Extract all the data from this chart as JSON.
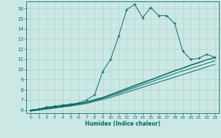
{
  "xlabel": "Humidex (Indice chaleur)",
  "bg_color": "#cce8e4",
  "grid_color": "#aad4cc",
  "line_color": "#006666",
  "xlim": [
    -0.5,
    23.5
  ],
  "ylim": [
    5.7,
    16.7
  ],
  "yticks": [
    6,
    7,
    8,
    9,
    10,
    11,
    12,
    13,
    14,
    15,
    16
  ],
  "xticks": [
    0,
    1,
    2,
    3,
    4,
    5,
    6,
    7,
    8,
    9,
    10,
    11,
    12,
    13,
    14,
    15,
    16,
    17,
    18,
    19,
    20,
    21,
    22,
    23
  ],
  "curves": [
    {
      "x": [
        0,
        1,
        2,
        3,
        4,
        5,
        6,
        7,
        8,
        9,
        10,
        11,
        12,
        13,
        14,
        15,
        16,
        17,
        18,
        19,
        20,
        21,
        22,
        23
      ],
      "y": [
        6.0,
        6.1,
        6.3,
        6.4,
        6.5,
        6.6,
        6.7,
        7.0,
        7.5,
        9.8,
        11.0,
        13.3,
        15.9,
        16.4,
        15.1,
        16.1,
        15.3,
        15.3,
        14.5,
        11.8,
        11.0,
        11.1,
        11.5,
        11.2
      ],
      "marker": "+"
    },
    {
      "x": [
        0,
        1,
        2,
        3,
        4,
        5,
        6,
        7,
        8,
        9,
        10,
        11,
        12,
        13,
        14,
        15,
        16,
        17,
        18,
        19,
        20,
        21,
        22,
        23
      ],
      "y": [
        6.0,
        6.1,
        6.2,
        6.3,
        6.4,
        6.5,
        6.65,
        6.8,
        7.0,
        7.2,
        7.5,
        7.75,
        8.05,
        8.35,
        8.65,
        8.95,
        9.25,
        9.55,
        9.85,
        10.1,
        10.4,
        10.65,
        10.95,
        11.2
      ],
      "marker": null
    },
    {
      "x": [
        0,
        1,
        2,
        3,
        4,
        5,
        6,
        7,
        8,
        9,
        10,
        11,
        12,
        13,
        14,
        15,
        16,
        17,
        18,
        19,
        20,
        21,
        22,
        23
      ],
      "y": [
        6.0,
        6.1,
        6.2,
        6.3,
        6.4,
        6.5,
        6.65,
        6.8,
        7.05,
        7.25,
        7.55,
        7.85,
        8.15,
        8.45,
        8.75,
        9.0,
        9.3,
        9.6,
        9.9,
        10.15,
        10.45,
        10.7,
        10.95,
        11.15
      ],
      "marker": null
    },
    {
      "x": [
        0,
        1,
        2,
        3,
        4,
        5,
        6,
        7,
        8,
        9,
        10,
        11,
        12,
        13,
        14,
        15,
        16,
        17,
        18,
        19,
        20,
        21,
        22,
        23
      ],
      "y": [
        5.95,
        6.05,
        6.15,
        6.25,
        6.35,
        6.45,
        6.6,
        6.75,
        6.95,
        7.15,
        7.4,
        7.65,
        7.95,
        8.2,
        8.5,
        8.75,
        9.05,
        9.3,
        9.6,
        9.85,
        10.1,
        10.35,
        10.6,
        10.85
      ],
      "marker": null
    },
    {
      "x": [
        0,
        1,
        2,
        3,
        4,
        5,
        6,
        7,
        8,
        9,
        10,
        11,
        12,
        13,
        14,
        15,
        16,
        17,
        18,
        19,
        20,
        21,
        22,
        23
      ],
      "y": [
        5.9,
        6.0,
        6.1,
        6.2,
        6.3,
        6.4,
        6.52,
        6.65,
        6.85,
        7.05,
        7.25,
        7.5,
        7.75,
        8.0,
        8.25,
        8.5,
        8.75,
        9.0,
        9.25,
        9.5,
        9.75,
        10.0,
        10.25,
        10.5
      ],
      "marker": null
    }
  ]
}
